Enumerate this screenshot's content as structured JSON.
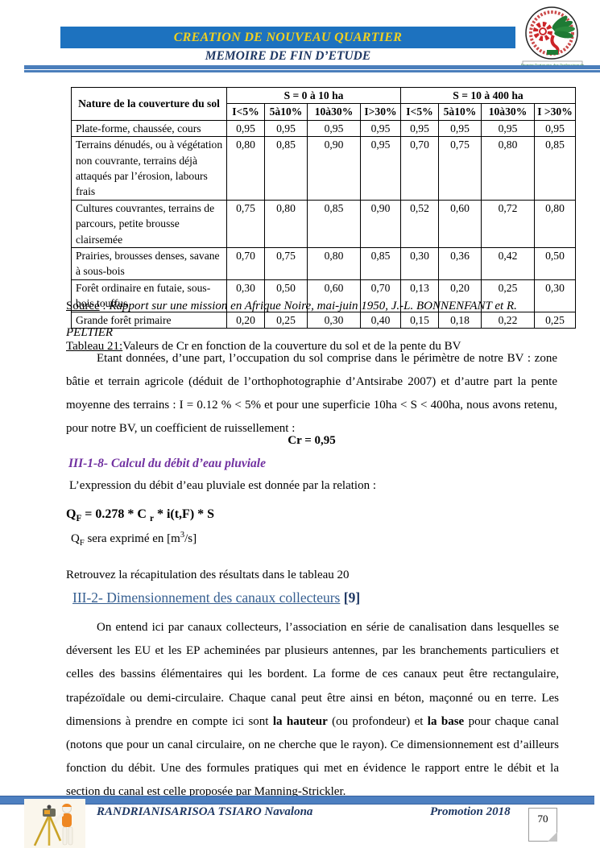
{
  "header": {
    "title": "CREATION DE NOUVEAU QUARTIER",
    "subtitle": "MEMOIRE DE FIN D’ETUDE",
    "logo_banner": "Premier Partenaire des Professionnels"
  },
  "table": {
    "corner": "Nature de la couverture du sol",
    "groups": [
      "S = 0 à 10 ha",
      "S = 10 à 400 ha"
    ],
    "subheaders": [
      "I<5%",
      "5à10%",
      "10à30%",
      "I>30%",
      "I<5%",
      "5à10%",
      "10à30%",
      "I >30%"
    ],
    "rows": [
      {
        "label": "Plate-forme, chaussée, cours",
        "values": [
          "0,95",
          "0,95",
          "0,95",
          "0,95",
          "0,95",
          "0,95",
          "0,95",
          "0,95"
        ]
      },
      {
        "label": "Terrains dénudés, ou à végétation non couvrante, terrains déjà attaqués par l’érosion, labours frais",
        "values": [
          "0,80",
          "0,85",
          "0,90",
          "0,95",
          "0,70",
          "0,75",
          "0,80",
          "0,85"
        ]
      },
      {
        "label": "Cultures couvrantes, terrains de parcours, petite brousse clairsemée",
        "values": [
          "0,75",
          "0,80",
          "0,85",
          "0,90",
          "0,52",
          "0,60",
          "0,72",
          "0,80"
        ]
      },
      {
        "label": "Prairies, brousses denses, savane à sous-bois",
        "values": [
          "0,70",
          "0,75",
          "0,80",
          "0,85",
          "0,30",
          "0,36",
          "0,42",
          "0,50"
        ]
      },
      {
        "label": "Forêt ordinaire en futaie, sous-bois touffus",
        "values": [
          "0,30",
          "0,50",
          "0,60",
          "0,70",
          "0,13",
          "0,20",
          "0,25",
          "0,30"
        ]
      },
      {
        "label": "Grande forêt primaire",
        "values": [
          "0,20",
          "0,25",
          "0,30",
          "0,40",
          "0,15",
          "0,18",
          "0,22",
          "0,25"
        ]
      }
    ]
  },
  "source": {
    "label": "Source",
    "sep": " : ",
    "text": "Rapport sur une mission en Afrique Noire, mai-juin 1950, J.-L. BONNENFANT et R. PELTIER"
  },
  "caption": {
    "label": "Tableau 21:",
    "text": "Valeurs de Cr en fonction de la couverture du sol et de la pente du BV"
  },
  "body": {
    "para1": "Etant données, d’une part, l’occupation du sol comprise dans le périmètre de notre BV : zone bâtie et terrain agricole (déduit de l’orthophotographie d’Antsirabe 2007) et d’autre part la pente moyenne des terrains : I = 0.12 % < 5% et pour une superficie 10ha < S < 400ha, nous avons retenu, pour notre BV, un coefficient de ruissellement :",
    "cr_result": "Cr = 0,95",
    "heading_318": "III-1-8- Calcul du débit d’eau pluviale",
    "expression_intro": "L’expression du débit d’eau pluviale est donnée par la relation :",
    "formula": {
      "q": "Q",
      "sub1": "F",
      "mid": " = 0.278 * C ",
      "sub2": "r",
      "tail": " * i(t,F) * S"
    },
    "unit": {
      "q": "Q",
      "sub": "F",
      "pre": " sera exprimé en [m",
      "sup": "3",
      "post": "/s]"
    },
    "retrouvez": "Retrouvez la récapitulation des résultats dans le tableau 20",
    "heading_32": {
      "title": "III-2- Dimensionnement des canaux collecteurs",
      "ref": "[9]"
    },
    "para2": {
      "a": "On entend ici par canaux collecteurs, l’association en série de canalisation dans lesquelles se déversent les EU et les EP acheminées par plusieurs antennes, par les branchements particuliers et celles des bassins élémentaires qui les bordent. La forme de ces canaux peut être rectangulaire, trapézoïdale ou demi-circulaire. Chaque canal peut être ainsi en béton, maçonné ou en terre. Les dimensions à prendre en compte ici sont ",
      "bold1": "la hauteur",
      "b": " (ou profondeur) et ",
      "bold2": "la base",
      "c": " pour chaque canal (notons que pour un canal circulaire, on ne cherche que le rayon). Ce dimensionnement est d’ailleurs fonction du débit. Une des formules pratiques qui met en évidence le rapport entre le débit et la section du canal est celle proposée par Manning-Strickler."
    }
  },
  "footer": {
    "author": "RANDRIANISARISOA TSIARO Navalona",
    "promotion": "Promotion 2018",
    "page_number": "70"
  },
  "colors": {
    "band_blue": "#1d72bf",
    "rule_blue": "#4a7ebb",
    "navy": "#1f3864",
    "title_yellow": "#f0d020",
    "heading_purple": "#7030a0",
    "heading_blue": "#365f91"
  }
}
